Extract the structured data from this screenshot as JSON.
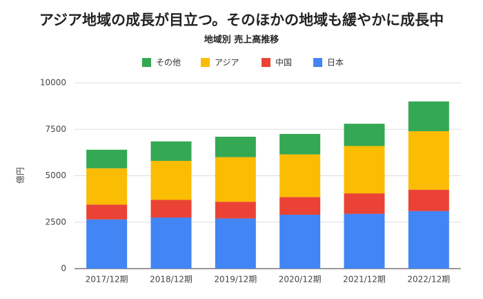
{
  "chart_data": {
    "type": "stacked-bar",
    "title": "アジア地域の成長が目立つ。そのほかの地域も緩やかに成長中",
    "subtitle": "地域別 売上高推移",
    "y_label": "億円",
    "categories": [
      "2017/12期",
      "2018/12期",
      "2019/12期",
      "2020/12期",
      "2021/12期",
      "2022/12期"
    ],
    "series": [
      {
        "name": "その他",
        "color": "#34a853",
        "values": [
          1000,
          1050,
          1100,
          1100,
          1200,
          1600
        ]
      },
      {
        "name": "アジア",
        "color": "#fbbc04",
        "values": [
          1950,
          2100,
          2400,
          2300,
          2550,
          3150
        ]
      },
      {
        "name": "中国",
        "color": "#ea4335",
        "values": [
          800,
          950,
          900,
          950,
          1100,
          1150
        ]
      },
      {
        "name": "日本",
        "color": "#4285f4",
        "values": [
          2650,
          2750,
          2700,
          2900,
          2950,
          3100
        ]
      }
    ],
    "ylim": [
      0,
      10000
    ],
    "yticks": [
      0,
      2500,
      5000,
      7500,
      10000
    ],
    "grid": true,
    "legend": "top"
  }
}
